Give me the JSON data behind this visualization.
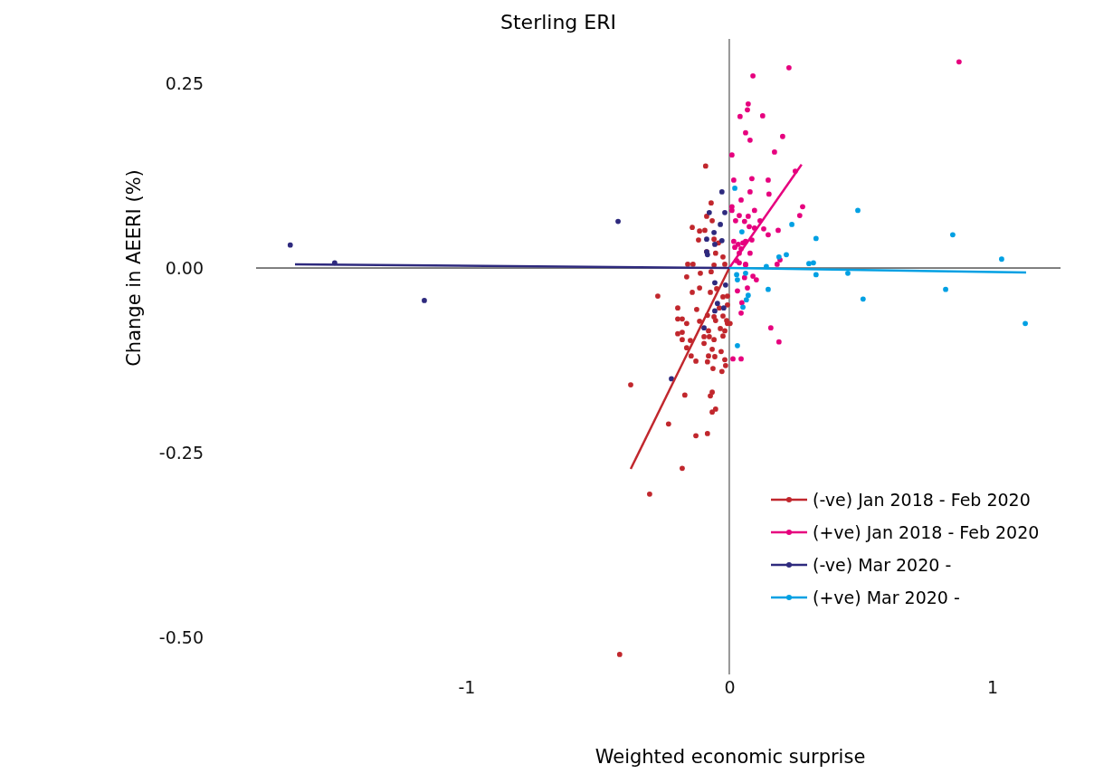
{
  "chart_data": {
    "type": "scatter",
    "title": "Sterling ERI",
    "xlabel": "Weighted economic surprise",
    "ylabel": "Change in AEERI (%)",
    "xlim": [
      -1.8,
      1.26
    ],
    "ylim": [
      -0.55,
      0.31
    ],
    "xticks": [
      -1,
      0,
      1
    ],
    "yticks": [
      {
        "value": 0.25,
        "label": "0.25"
      },
      {
        "value": 0,
        "label": "0.00"
      },
      {
        "value": -0.25,
        "label": "-0.25"
      },
      {
        "value": -0.5,
        "label": "-0.50"
      }
    ],
    "grid": false,
    "legend": "bottom right",
    "marker": "circle",
    "series": [
      {
        "name": "(-ve) Jan 2018 - Feb 2020",
        "color": "#c1272d",
        "x": [
          -0.09,
          -0.069,
          -0.086,
          -0.065,
          -0.141,
          -0.093,
          -0.113,
          -0.117,
          -0.058,
          -0.041,
          -0.086,
          -0.138,
          -0.158,
          -0.058,
          -0.017,
          -0.052,
          -0.024,
          -0.162,
          -0.11,
          -0.069,
          -0.272,
          -0.141,
          -0.113,
          -0.048,
          -0.007,
          -0.072,
          -0.024,
          -0.196,
          -0.124,
          -0.038,
          -0.007,
          -0.083,
          -0.058,
          -0.024,
          -0.01,
          -0.196,
          -0.179,
          -0.052,
          -0.113,
          -0.162,
          -0.007,
          -0.196,
          -0.179,
          -0.079,
          -0.034,
          -0.017,
          0.003,
          -0.179,
          -0.148,
          -0.162,
          -0.096,
          -0.076,
          -0.024,
          -0.058,
          -0.096,
          -0.065,
          -0.031,
          -0.145,
          -0.079,
          -0.055,
          -0.127,
          -0.017,
          -0.083,
          -0.062,
          -0.014,
          -0.028,
          -0.375,
          -0.169,
          -0.072,
          -0.065,
          -0.065,
          -0.052,
          -0.231,
          -0.127,
          -0.083,
          -0.179,
          -0.303,
          -0.417
        ],
        "values": [
          0.138,
          0.088,
          0.07,
          0.064,
          0.055,
          0.051,
          0.05,
          0.038,
          0.039,
          0.034,
          0.022,
          0.005,
          0.005,
          0.004,
          0.005,
          0.02,
          0.015,
          -0.012,
          -0.007,
          -0.005,
          -0.038,
          -0.033,
          -0.027,
          -0.028,
          -0.038,
          -0.033,
          -0.039,
          -0.054,
          -0.056,
          -0.054,
          -0.05,
          -0.064,
          -0.066,
          -0.065,
          -0.071,
          -0.069,
          -0.069,
          -0.071,
          -0.072,
          -0.075,
          -0.075,
          -0.089,
          -0.087,
          -0.085,
          -0.082,
          -0.085,
          -0.075,
          -0.097,
          -0.098,
          -0.108,
          -0.093,
          -0.093,
          -0.092,
          -0.097,
          -0.102,
          -0.11,
          -0.113,
          -0.119,
          -0.119,
          -0.12,
          -0.126,
          -0.124,
          -0.127,
          -0.136,
          -0.132,
          -0.14,
          -0.158,
          -0.172,
          -0.173,
          -0.168,
          -0.195,
          -0.191,
          -0.211,
          -0.227,
          -0.224,
          -0.271,
          -0.306,
          -0.523
        ]
      },
      {
        "name": "(+ve) Jan 2018 - Feb 2020",
        "color": "#e6007e",
        "x": [
          0.874,
          0.227,
          0.09,
          0.072,
          0.069,
          0.041,
          0.127,
          0.062,
          0.079,
          0.203,
          0.172,
          0.01,
          0.251,
          0.017,
          0.086,
          0.148,
          0.151,
          0.079,
          0.045,
          0.01,
          0.01,
          0.096,
          0.279,
          0.268,
          0.038,
          0.072,
          0.024,
          0.058,
          0.117,
          0.131,
          0.096,
          0.076,
          0.186,
          0.148,
          0.086,
          0.017,
          0.034,
          0.052,
          0.062,
          0.021,
          0.045,
          0.038,
          0.079,
          0.062,
          0.193,
          0.182,
          0.028,
          0.038,
          0.062,
          0.09,
          0.103,
          0.058,
          0.031,
          0.069,
          0.048,
          0.045,
          0.158,
          0.189,
          0.014,
          0.045
        ],
        "values": [
          0.279,
          0.271,
          0.26,
          0.222,
          0.214,
          0.205,
          0.206,
          0.183,
          0.173,
          0.178,
          0.157,
          0.153,
          0.131,
          0.119,
          0.121,
          0.119,
          0.1,
          0.103,
          0.092,
          0.083,
          0.078,
          0.078,
          0.083,
          0.071,
          0.071,
          0.07,
          0.064,
          0.063,
          0.064,
          0.053,
          0.054,
          0.056,
          0.051,
          0.045,
          0.038,
          0.036,
          0.032,
          0.034,
          0.036,
          0.028,
          0.026,
          0.02,
          0.02,
          0.005,
          0.011,
          0.005,
          0.01,
          0.007,
          0.004,
          -0.011,
          -0.016,
          -0.013,
          -0.031,
          -0.027,
          -0.047,
          -0.061,
          -0.081,
          -0.1,
          -0.123,
          -0.123
        ]
      },
      {
        "name": "(-ve) Mar 2020 -",
        "color": "#2e2a7e",
        "x": [
          -1.67,
          -1.501,
          -1.16,
          -0.423,
          -0.028,
          -0.076,
          -0.017,
          -0.034,
          -0.058,
          -0.086,
          -0.055,
          -0.028,
          -0.086,
          -0.083,
          -0.055,
          -0.014,
          -0.045,
          -0.055,
          -0.021,
          -0.096,
          -0.22
        ],
        "values": [
          0.031,
          0.007,
          -0.044,
          0.063,
          0.103,
          0.075,
          0.075,
          0.059,
          0.048,
          0.039,
          0.032,
          0.037,
          0.022,
          0.018,
          -0.02,
          -0.023,
          -0.048,
          -0.058,
          -0.054,
          -0.081,
          -0.15
        ]
      },
      {
        "name": "(+ve) Mar 2020 -",
        "color": "#00a0e3",
        "x": [
          0.021,
          0.048,
          0.238,
          0.33,
          0.189,
          0.217,
          0.303,
          0.32,
          0.141,
          0.028,
          0.062,
          0.031,
          0.33,
          0.451,
          0.148,
          0.072,
          0.065,
          0.052,
          0.031,
          0.489,
          0.85,
          1.036,
          0.823,
          1.126,
          0.509
        ],
        "values": [
          0.108,
          0.049,
          0.059,
          0.04,
          0.015,
          0.018,
          0.006,
          0.007,
          0.002,
          -0.009,
          -0.007,
          -0.016,
          -0.009,
          -0.007,
          -0.029,
          -0.037,
          -0.043,
          -0.053,
          -0.105,
          0.078,
          0.045,
          0.012,
          -0.029,
          -0.075,
          -0.042
        ]
      },
      {
        "type": "line",
        "marker": "none",
        "color": "#c1272d",
        "x": [
          -0.375,
          0
        ],
        "values": [
          -0.272,
          0
        ]
      },
      {
        "type": "line",
        "marker": "none",
        "color": "#e6007e",
        "x": [
          0,
          0.275
        ],
        "values": [
          0,
          0.14
        ]
      },
      {
        "type": "line",
        "marker": "none",
        "color": "#2e2a7e",
        "x": [
          -1.652,
          0
        ],
        "values": [
          0.005,
          0
        ]
      },
      {
        "type": "line",
        "marker": "none",
        "color": "#00a0e3",
        "x": [
          0,
          1.129
        ],
        "values": [
          0,
          -0.006
        ]
      }
    ]
  }
}
